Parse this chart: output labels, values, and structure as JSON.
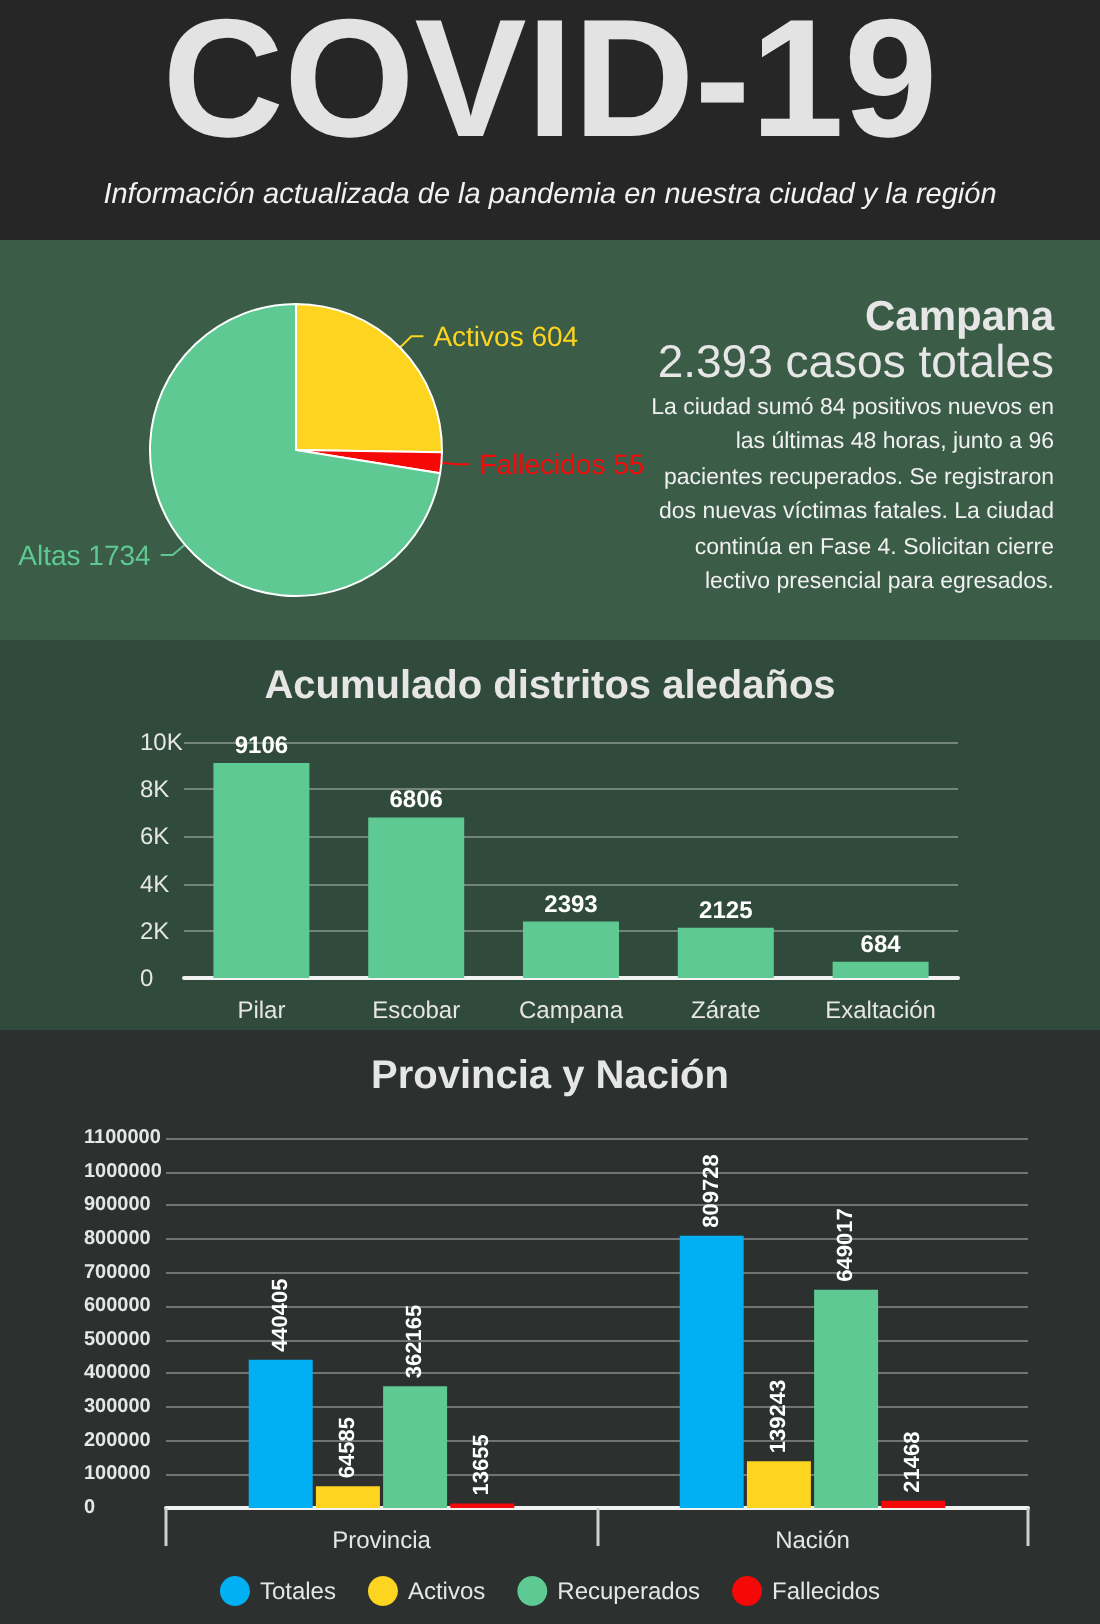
{
  "chart_data": [
    {
      "type": "other",
      "title": "COVID-19",
      "subtitle": "Información actualizada de la pandemia en nuestra ciudad y la región"
    },
    {
      "type": "pie",
      "title": "Campana",
      "subtitle": "2.393 casos totales",
      "annotations": [
        "La ciudad sumó 84 positivos nuevos en las últimas 48 horas, junto a 96 pacientes recuperados. Se registraron dos nuevas víctimas fatales. La ciudad continúa en Fase 4. Solicitan cierre lectivo presencial para egresados."
      ],
      "categories": [
        "Activos",
        "Fallecidos",
        "Altas"
      ],
      "values": [
        604,
        55,
        1734
      ],
      "colors": [
        "#fdd41f",
        "#f50808",
        "#5ec993"
      ],
      "data_labels": true
    },
    {
      "type": "bar",
      "title": "Acumulado distritos aledaños",
      "categories": [
        "Pilar",
        "Escobar",
        "Campana",
        "Zárate",
        "Exaltación"
      ],
      "values": [
        9106,
        6806,
        2393,
        2125,
        684
      ],
      "color": "#5ec993",
      "ylim": [
        0,
        10000
      ],
      "yticks": [
        0,
        {
          "value": 2000,
          "label": "2K"
        },
        {
          "value": 4000,
          "label": "4K"
        },
        {
          "value": 6000,
          "label": "6K"
        },
        {
          "value": 8000,
          "label": "8K"
        },
        {
          "value": 10000,
          "label": "10K"
        }
      ],
      "grid": "y",
      "data_labels": true
    },
    {
      "type": "bar",
      "title": "Provincia y Nación",
      "categories": [
        "Provincia",
        "Nación"
      ],
      "series": [
        {
          "name": "Totales",
          "color": "#00b0f2",
          "values": [
            440405,
            809728
          ]
        },
        {
          "name": "Activos",
          "color": "#fdd41f",
          "values": [
            64585,
            139243
          ]
        },
        {
          "name": "Recuperados",
          "color": "#5ec993",
          "values": [
            362165,
            649017
          ]
        },
        {
          "name": "Fallecidos",
          "color": "#f50808",
          "values": [
            13655,
            21468
          ]
        }
      ],
      "ylim": [
        0,
        1100000
      ],
      "yticks": [
        0,
        100000,
        200000,
        300000,
        400000,
        500000,
        600000,
        700000,
        800000,
        900000,
        1000000,
        1100000
      ],
      "grid": "y",
      "data_labels": true,
      "legend": "bottom"
    }
  ]
}
